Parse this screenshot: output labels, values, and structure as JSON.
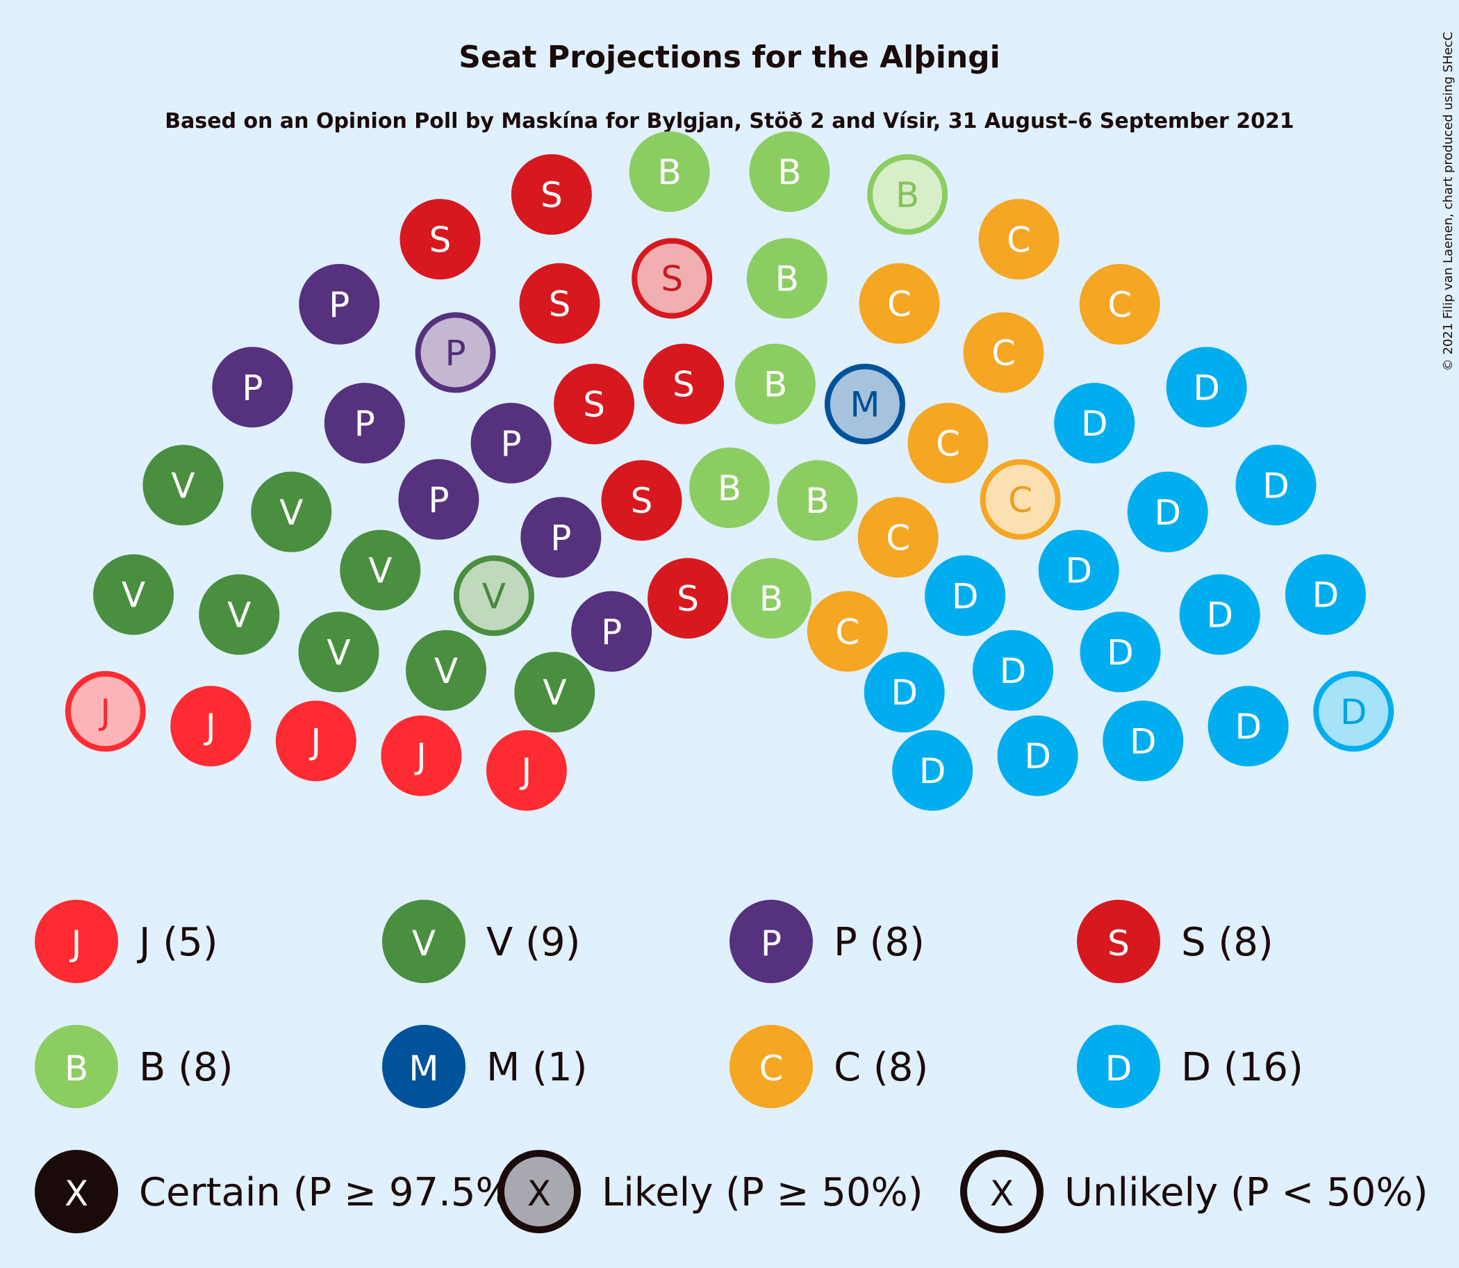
{
  "chart_data": {
    "type": "parliament",
    "title": "Seat Projections for the Alþingi",
    "subtitle": "Based on an Opinion Poll by Maskína for Bylgjan, Stöð 2 and Vísir, 31 August–6 September 2021",
    "copyright": "© 2021 Filip van Laenen, chart produced using SHecC",
    "total_seats": 63,
    "parties": [
      {
        "letter": "J",
        "seats": 5,
        "certain": 4,
        "likely": 0,
        "unlikely": 1,
        "color": "#ff2b32",
        "label": "J (5)"
      },
      {
        "letter": "V",
        "seats": 9,
        "certain": 8,
        "likely": 0,
        "unlikely": 1,
        "color": "#4a8f3f",
        "label": "V (9)"
      },
      {
        "letter": "P",
        "seats": 8,
        "certain": 7,
        "likely": 0,
        "unlikely": 1,
        "color": "#55317e",
        "label": "P (8)"
      },
      {
        "letter": "S",
        "seats": 8,
        "certain": 7,
        "likely": 0,
        "unlikely": 1,
        "color": "#d7191f",
        "label": "S (8)"
      },
      {
        "letter": "B",
        "seats": 8,
        "certain": 7,
        "likely": 0,
        "unlikely": 1,
        "color": "#8ccd62",
        "label": "B (8)"
      },
      {
        "letter": "M",
        "seats": 1,
        "certain": 0,
        "likely": 0,
        "unlikely": 1,
        "color": "#00529b",
        "label": "M (1)"
      },
      {
        "letter": "C",
        "seats": 8,
        "certain": 7,
        "likely": 0,
        "unlikely": 1,
        "color": "#f5a623",
        "label": "C (8)"
      },
      {
        "letter": "D",
        "seats": 16,
        "certain": 15,
        "likely": 0,
        "unlikely": 1,
        "color": "#00aeef",
        "label": "D (16)"
      }
    ],
    "certainty_legend": [
      {
        "key": "certain",
        "symbol": "X",
        "label": "Certain (P ≥ 97.5%)"
      },
      {
        "key": "likely",
        "symbol": "X",
        "label": "Likely (P ≥ 50%)"
      },
      {
        "key": "unlikely",
        "symbol": "X",
        "label": "Unlikely (P < 50%)"
      }
    ]
  }
}
